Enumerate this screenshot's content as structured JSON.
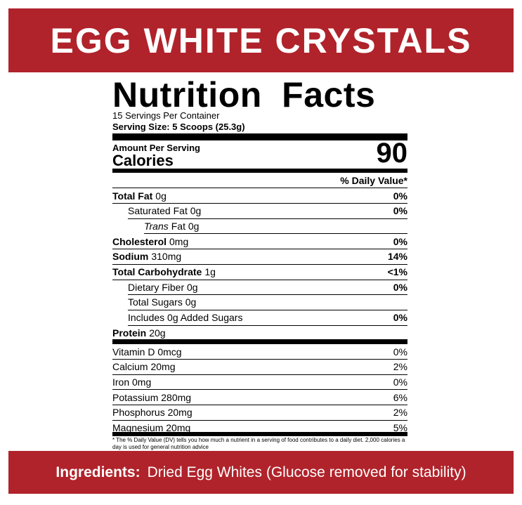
{
  "header": {
    "title": "EGG WHITE CRYSTALS"
  },
  "label": {
    "title": "Nutrition Facts",
    "servings": "15 Servings Per Container",
    "serving_size": "Serving Size: 5 Scoops (25.3g)",
    "amount_per_serving": "Amount Per Serving",
    "calories_label": "Calories",
    "calories": "90",
    "dv_header": "% Daily Value*",
    "nutrients": [
      {
        "name": "Total Fat",
        "amount": "0g",
        "dv": "0%"
      },
      {
        "name": "Saturated Fat 0g",
        "dv": "0%"
      },
      {
        "name_italic": "Trans",
        "name": "Fat 0g"
      },
      {
        "name": "Cholesterol",
        "amount": "0mg",
        "dv": "0%"
      },
      {
        "name": "Sodium",
        "amount": "310mg",
        "dv": "14%"
      },
      {
        "name": "Total Carbohydrate",
        "amount": "1g",
        "dv": "<1%"
      },
      {
        "name": "Dietary Fiber 0g",
        "dv": "0%"
      },
      {
        "name": "Total Sugars 0g"
      },
      {
        "name": "Includes 0g Added Sugars",
        "dv": "0%"
      },
      {
        "name": "Protein",
        "amount": "20g"
      }
    ],
    "vitamins": [
      {
        "name": "Vitamin D 0mcg",
        "dv": "0%"
      },
      {
        "name": "Calcium 20mg",
        "dv": "2%"
      },
      {
        "name": "Iron 0mg",
        "dv": "0%"
      },
      {
        "name": "Potassium 280mg",
        "dv": "6%"
      },
      {
        "name": "Phosphorus 20mg",
        "dv": "2%"
      },
      {
        "name": "Magnesium 20mg",
        "dv": "5%"
      }
    ],
    "footnote": "* The % Daily Value (DV) tells you how much a nutrient in a serving of food contributes to a daily diet.  2,000 calories a day is used for general nutrition advice"
  },
  "ingredients": {
    "label": "Ingredients:",
    "text": "Dried Egg Whites (Glucose removed for stability)"
  }
}
